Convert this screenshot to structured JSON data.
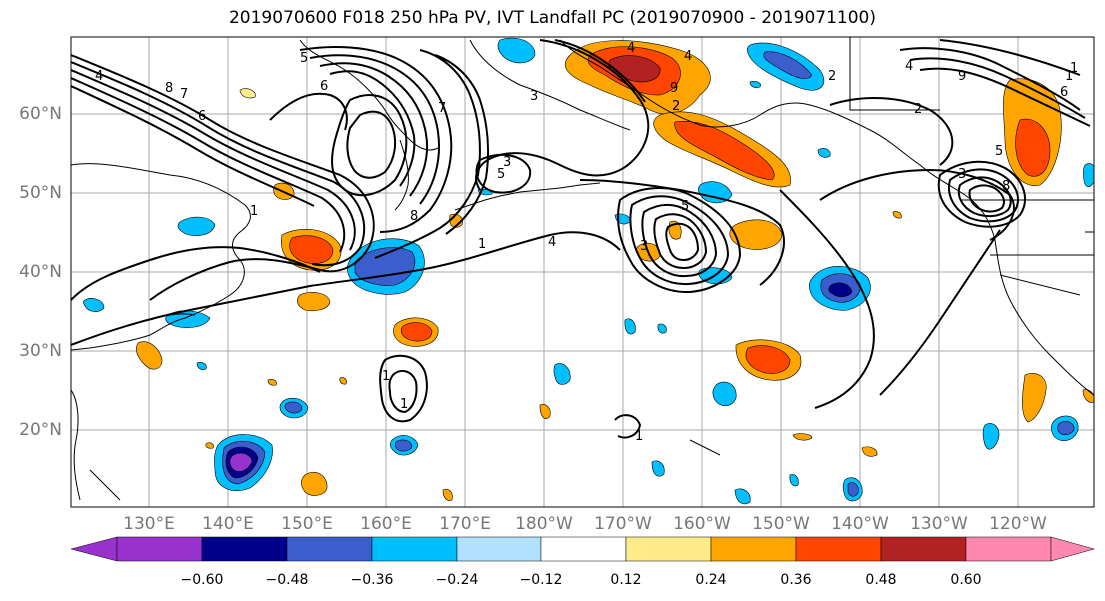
{
  "title": "2019070600 F018 250 hPa PV, IVT Landfall PC (2019070900 - 2019071100)",
  "map": {
    "lat_labels": [
      "60°N",
      "50°N",
      "40°N",
      "30°N",
      "20°N"
    ],
    "lon_labels": [
      "130°E",
      "140°E",
      "150°E",
      "160°E",
      "170°E",
      "180°W",
      "170°W",
      "160°W",
      "150°W",
      "140°W",
      "130°W",
      "120°W"
    ],
    "contour_labels": [
      "4",
      "8",
      "7",
      "6",
      "8",
      "5",
      "6",
      "3",
      "5",
      "7",
      "3",
      "4",
      "9",
      "1",
      "5",
      "2",
      "4",
      "5",
      "3",
      "6",
      "9",
      "8",
      "1",
      "1",
      "2",
      "1",
      "1",
      "1",
      "1",
      "3",
      "4",
      "2",
      "4"
    ],
    "grid": true,
    "fill_colors_note": "diverging"
  },
  "colorbar": {
    "ticks": [
      "−0.60",
      "−0.48",
      "−0.36",
      "−0.24",
      "−0.12",
      "0.12",
      "0.24",
      "0.36",
      "0.48",
      "0.60"
    ],
    "colors": [
      "#9932cc",
      "#00008b",
      "#3a5fcd",
      "#00bfff",
      "#b0e2ff",
      "#ffffff",
      "#ffeb8a",
      "#ffa500",
      "#ff4500",
      "#b22222",
      "#ff88b0"
    ]
  }
}
